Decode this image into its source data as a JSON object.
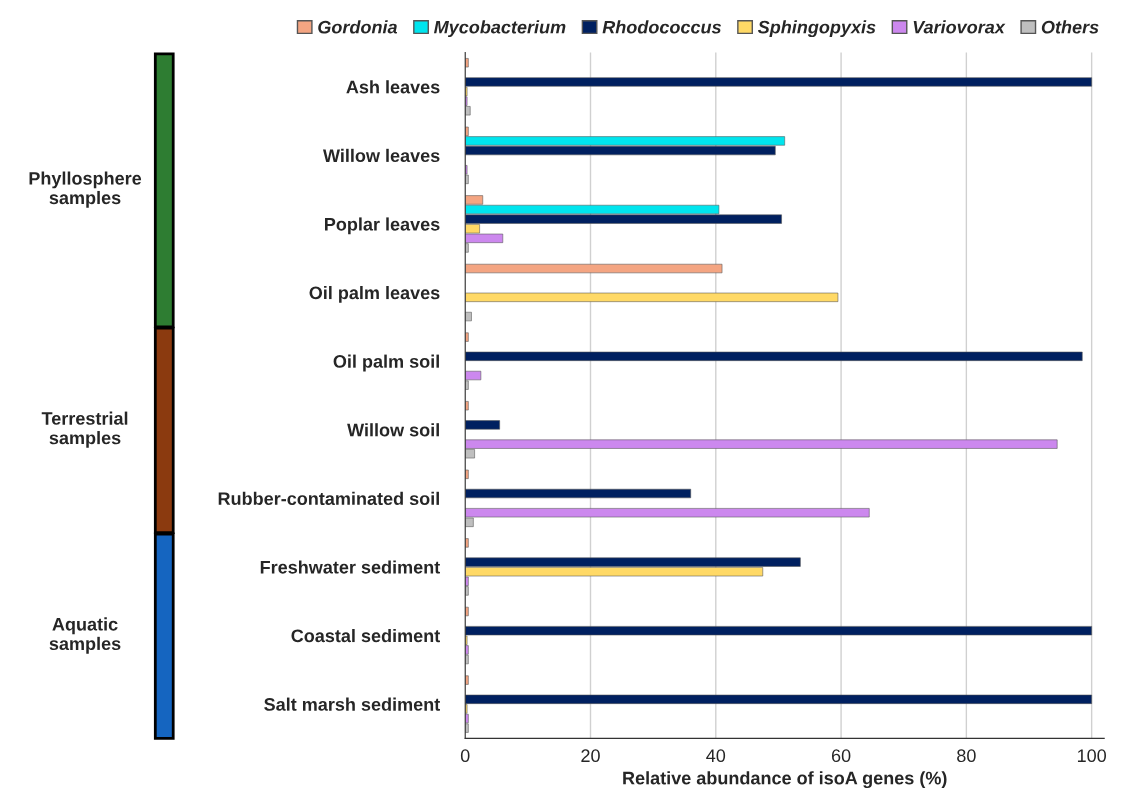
{
  "chart_data": {
    "type": "bar",
    "orientation": "horizontal",
    "xlabel": "Relative abundance of isoA genes (%)",
    "categories": [
      "Ash leaves",
      "Willow leaves",
      "Poplar leaves",
      "Oil palm leaves",
      "Oil palm soil",
      "Willow soil",
      "Rubber-contaminated soil",
      "Freshwater sediment",
      "Coastal sediment",
      "Salt marsh sediment"
    ],
    "series": [
      {
        "name": "Gordonia",
        "color": "#f4a582",
        "values": [
          0.5,
          0.5,
          2.8,
          41,
          0.5,
          0.5,
          0.5,
          0.5,
          0.5,
          0.5
        ]
      },
      {
        "name": "Mycobacterium",
        "color": "#00e5ee",
        "values": [
          0,
          51,
          40.5,
          0,
          0,
          0,
          0,
          0,
          0,
          0
        ]
      },
      {
        "name": "Rhodococcus",
        "color": "#002060",
        "values": [
          100,
          49.5,
          50.5,
          0,
          98.5,
          5.5,
          36,
          53.5,
          100,
          100
        ]
      },
      {
        "name": "Sphingopyxis",
        "color": "#ffd966",
        "values": [
          0.3,
          0,
          2.3,
          59.5,
          0,
          0,
          0,
          47.5,
          0.3,
          0.3
        ]
      },
      {
        "name": "Variovorax",
        "color": "#cc88ee",
        "values": [
          0.3,
          0.3,
          6,
          0,
          2.5,
          94.5,
          64.5,
          0.5,
          0.5,
          0.5
        ]
      },
      {
        "name": "Others",
        "color": "#bfbfbf",
        "values": [
          0.8,
          0.5,
          0.5,
          1,
          0.5,
          1.5,
          1.3,
          0.5,
          0.5,
          0.5
        ]
      }
    ],
    "xlim": [
      0,
      102
    ],
    "xticks": [
      0,
      20,
      40,
      60,
      80,
      100
    ],
    "grid": "x",
    "legend": "top",
    "annotations": [
      "Phyllosphere samples",
      "Terrestrial samples",
      "Aquatic samples"
    ]
  }
}
